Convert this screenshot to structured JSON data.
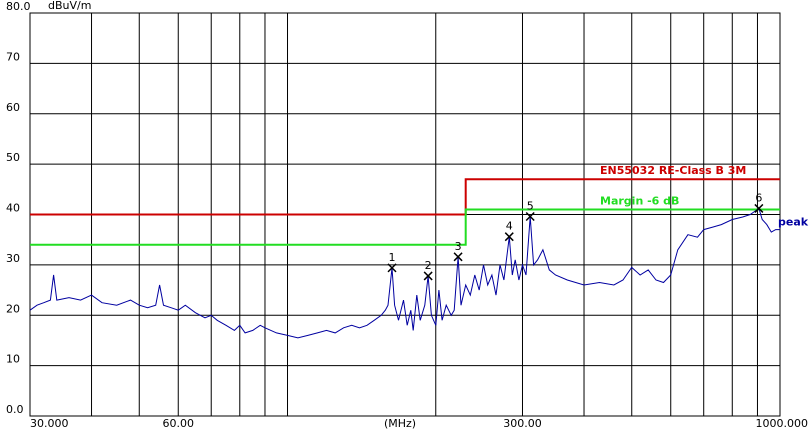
{
  "chart_data": {
    "type": "line",
    "y_label": "dBuV/m",
    "x_label": "(MHz)",
    "xlim": [
      30,
      1000
    ],
    "ylim": [
      0,
      80
    ],
    "log_x": true,
    "grid": true,
    "xticks": [
      {
        "value": 30,
        "label": "30.000"
      },
      {
        "value": 60,
        "label": "60.00"
      },
      {
        "value": 300,
        "label": "300.00"
      },
      {
        "value": 1000,
        "label": "1000.000"
      }
    ],
    "xgrid": [
      40,
      50,
      70,
      80,
      90,
      100,
      200,
      400,
      500,
      600,
      700,
      800,
      900
    ],
    "yticks": [
      {
        "value": 0,
        "label": "0.0"
      },
      10,
      20,
      30,
      40,
      50,
      60,
      70,
      {
        "value": 80,
        "label": "80.0"
      }
    ],
    "limits": [
      {
        "name": "EN55032 RE-Class B 3M",
        "color": "#cc0000",
        "x": [
          30,
          230,
          230,
          1000
        ],
        "values": [
          40,
          40,
          47,
          47
        ]
      },
      {
        "name": "Margin -6 dB",
        "color": "#22dd22",
        "x": [
          30,
          230,
          230,
          1000
        ],
        "values": [
          34,
          34,
          41,
          41
        ]
      }
    ],
    "series": [
      {
        "name": "peak",
        "color": "#0000a0",
        "x": [
          30,
          31,
          32,
          33,
          33.5,
          34,
          36,
          38,
          40,
          42,
          45,
          48,
          50,
          52,
          54,
          55,
          56,
          58,
          60,
          62,
          65,
          68,
          70,
          72,
          75,
          78,
          80,
          82,
          85,
          88,
          90,
          95,
          100,
          105,
          110,
          115,
          120,
          125,
          130,
          135,
          140,
          145,
          150,
          155,
          158,
          160,
          163,
          165,
          168,
          172,
          175,
          178,
          180,
          183,
          186,
          190,
          193,
          196,
          200,
          203,
          206,
          210,
          215,
          218,
          222,
          225,
          230,
          235,
          240,
          245,
          250,
          255,
          260,
          265,
          270,
          275,
          282,
          286,
          290,
          295,
          300,
          305,
          311,
          316,
          322,
          330,
          340,
          350,
          370,
          400,
          430,
          460,
          480,
          500,
          520,
          540,
          560,
          580,
          600,
          620,
          650,
          680,
          700,
          730,
          760,
          800,
          840,
          870,
          906,
          920,
          940,
          960,
          980,
          1000
        ],
        "values": [
          21,
          22,
          22.5,
          23,
          28,
          23,
          23.5,
          23,
          24,
          22.5,
          22,
          23,
          22,
          21.5,
          22,
          26,
          22,
          21.5,
          21,
          22,
          20.5,
          19.5,
          20,
          19,
          18,
          17,
          18,
          16.5,
          17,
          18,
          17.5,
          16.5,
          16,
          15.5,
          16,
          16.5,
          17,
          16.5,
          17.5,
          18,
          17.5,
          18,
          19,
          20,
          21,
          22,
          29.4,
          22,
          19,
          23,
          18,
          21,
          17,
          24,
          19,
          22,
          27.8,
          20,
          18,
          25,
          19,
          22,
          20,
          21,
          31.6,
          22,
          26,
          24,
          28,
          25,
          30,
          26,
          28,
          24,
          30,
          27,
          35.6,
          28,
          31,
          27,
          30,
          28,
          39.6,
          30,
          31,
          33,
          29,
          28,
          27,
          26,
          26.5,
          26,
          27,
          29.5,
          28,
          29,
          27,
          26.5,
          28,
          33,
          36,
          35.5,
          37,
          37.5,
          38,
          39,
          39.5,
          40,
          41.2,
          39,
          38,
          36.5,
          37,
          37
        ]
      }
    ],
    "markers": [
      {
        "label": "1",
        "x": 163,
        "value": 29.4
      },
      {
        "label": "2",
        "x": 193,
        "value": 27.8
      },
      {
        "label": "3",
        "x": 222,
        "value": 31.6
      },
      {
        "label": "4",
        "x": 282,
        "value": 35.6
      },
      {
        "label": "5",
        "x": 311,
        "value": 39.6
      },
      {
        "label": "6",
        "x": 906,
        "value": 41.2
      }
    ]
  }
}
